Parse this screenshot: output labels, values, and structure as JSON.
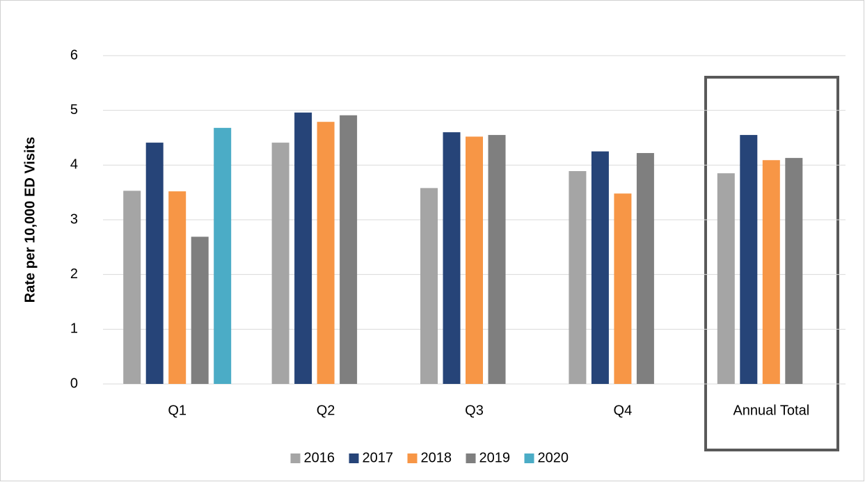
{
  "chart_data": {
    "type": "bar",
    "y_label": "Rate per 10,000 ED Visits",
    "categories": [
      "Q1",
      "Q2",
      "Q3",
      "Q4",
      "Annual Total"
    ],
    "series": [
      {
        "name": "2016",
        "color": "#a5a5a5",
        "values": [
          3.53,
          4.41,
          3.58,
          3.89,
          3.85
        ]
      },
      {
        "name": "2017",
        "color": "#264478",
        "values": [
          4.41,
          4.96,
          4.6,
          4.25,
          4.55
        ]
      },
      {
        "name": "2018",
        "color": "#f79646",
        "values": [
          3.52,
          4.79,
          4.52,
          3.48,
          4.09
        ]
      },
      {
        "name": "2019",
        "color": "#7f7f7f",
        "values": [
          2.69,
          4.91,
          4.55,
          4.22,
          4.13
        ]
      },
      {
        "name": "2020",
        "color": "#4bacc6",
        "values": [
          4.68,
          null,
          null,
          null,
          null
        ]
      }
    ],
    "ylim": [
      0,
      6
    ],
    "yticks": [
      0,
      1,
      2,
      3,
      4,
      5,
      6
    ],
    "grid": true,
    "legend": "bottom"
  }
}
